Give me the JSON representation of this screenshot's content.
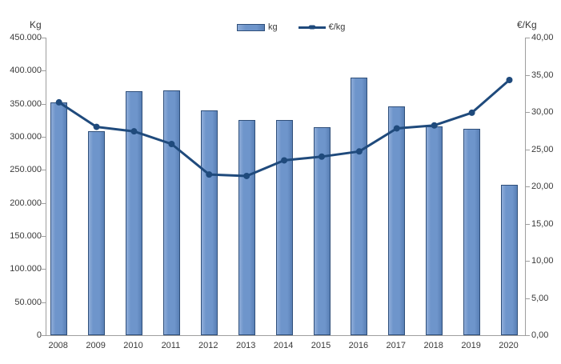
{
  "chart_data": {
    "type": "combo",
    "title": "",
    "categories": [
      "2008",
      "2009",
      "2010",
      "2011",
      "2012",
      "2013",
      "2014",
      "2015",
      "2016",
      "2017",
      "2018",
      "2019",
      "2020"
    ],
    "series": [
      {
        "name": "kg",
        "type": "bar",
        "y_axis": "left",
        "values": [
          352000,
          308000,
          369000,
          370000,
          340000,
          326000,
          325000,
          315000,
          389000,
          346000,
          316000,
          312000,
          227000
        ]
      },
      {
        "name": "€/kg",
        "type": "line",
        "y_axis": "right",
        "values": [
          31.3,
          28.0,
          27.4,
          25.7,
          21.6,
          21.4,
          23.5,
          24.0,
          24.7,
          27.8,
          28.2,
          29.9,
          34.3
        ]
      }
    ],
    "left_axis": {
      "label": "Kg",
      "lim": [
        0,
        450000
      ],
      "tick_step": 50000,
      "tick_labels": [
        "450.000",
        "400.000",
        "350.000",
        "300.000",
        "250.000",
        "200.000",
        "150.000",
        "100.000",
        "50.000",
        "0"
      ]
    },
    "right_axis": {
      "label": "€/Kg",
      "lim": [
        0,
        40
      ],
      "tick_step": 5,
      "tick_labels": [
        "40,00",
        "35,00",
        "30,00",
        "25,00",
        "20,00",
        "15,00",
        "10,00",
        "5,00",
        "0,00"
      ]
    },
    "legend_position": "top-center",
    "grid": false,
    "colors": {
      "bar_fill": "#6e95cb",
      "bar_light": "#8fadd9",
      "bar_dark": "#587fb5",
      "bar_border": "#2f4f7a",
      "line": "#1f4a7c",
      "axis": "#9e9e9e",
      "text": "#3a3a3a"
    }
  }
}
